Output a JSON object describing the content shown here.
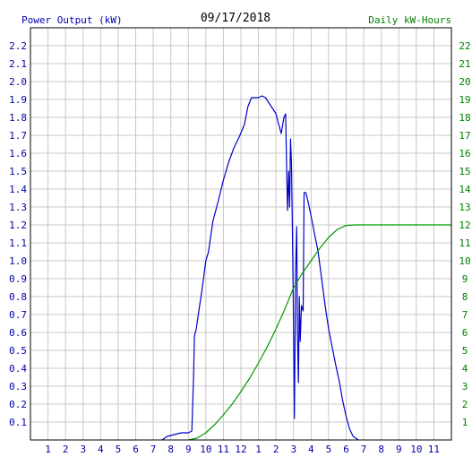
{
  "header": {
    "left_label": "Power Output (kW)",
    "date": "09/17/2018",
    "right_label": "Daily kW-Hours"
  },
  "colors": {
    "background": "#ffffff",
    "grid": "#c8c8c8",
    "frame": "#000000",
    "power_series": "#0000cc",
    "energy_series": "#009900",
    "left_axis_text": "#0000aa",
    "right_axis_text": "#008000"
  },
  "chart_data": {
    "type": "line",
    "title": "09/17/2018",
    "x_ticks": [
      "1",
      "2",
      "3",
      "4",
      "5",
      "6",
      "7",
      "8",
      "9",
      "10",
      "11",
      "12",
      "1",
      "2",
      "3",
      "4",
      "5",
      "6",
      "7",
      "8",
      "9",
      "10",
      "11"
    ],
    "x_range_hours": [
      0,
      24
    ],
    "y_left": {
      "label": "Power Output (kW)",
      "range": [
        0,
        2.3
      ],
      "ticks": [
        "0.1",
        "0.2",
        "0.3",
        "0.4",
        "0.5",
        "0.6",
        "0.7",
        "0.8",
        "0.9",
        "1.0",
        "1.1",
        "1.2",
        "1.3",
        "1.4",
        "1.5",
        "1.6",
        "1.7",
        "1.8",
        "1.9",
        "2.0",
        "2.1",
        "2.2"
      ]
    },
    "y_right": {
      "label": "Daily kW-Hours",
      "range": [
        0,
        23
      ],
      "ticks": [
        "1",
        "2",
        "3",
        "4",
        "5",
        "6",
        "7",
        "8",
        "9",
        "10",
        "11",
        "12",
        "13",
        "14",
        "15",
        "16",
        "17",
        "18",
        "19",
        "20",
        "21",
        "22"
      ]
    },
    "grid": true,
    "series": [
      {
        "axis": "left",
        "color": "#0000cc",
        "points": [
          [
            7.5,
            0.0
          ],
          [
            7.8,
            0.02
          ],
          [
            8.2,
            0.03
          ],
          [
            8.6,
            0.04
          ],
          [
            9.0,
            0.04
          ],
          [
            9.2,
            0.05
          ],
          [
            9.3,
            0.35
          ],
          [
            9.35,
            0.58
          ],
          [
            9.45,
            0.62
          ],
          [
            9.6,
            0.72
          ],
          [
            9.8,
            0.85
          ],
          [
            10.0,
            1.0
          ],
          [
            10.15,
            1.05
          ],
          [
            10.4,
            1.22
          ],
          [
            10.7,
            1.33
          ],
          [
            11.0,
            1.45
          ],
          [
            11.3,
            1.55
          ],
          [
            11.6,
            1.63
          ],
          [
            11.9,
            1.69
          ],
          [
            12.2,
            1.76
          ],
          [
            12.4,
            1.86
          ],
          [
            12.6,
            1.91
          ],
          [
            12.8,
            1.91
          ],
          [
            13.0,
            1.91
          ],
          [
            13.2,
            1.92
          ],
          [
            13.4,
            1.91
          ],
          [
            13.6,
            1.88
          ],
          [
            13.8,
            1.85
          ],
          [
            14.0,
            1.82
          ],
          [
            14.1,
            1.78
          ],
          [
            14.3,
            1.71
          ],
          [
            14.45,
            1.8
          ],
          [
            14.55,
            1.82
          ],
          [
            14.62,
            1.45
          ],
          [
            14.66,
            1.28
          ],
          [
            14.72,
            1.5
          ],
          [
            14.78,
            1.3
          ],
          [
            14.83,
            1.68
          ],
          [
            14.88,
            1.55
          ],
          [
            14.93,
            1.2
          ],
          [
            14.98,
            0.8
          ],
          [
            15.05,
            0.12
          ],
          [
            15.12,
            0.95
          ],
          [
            15.18,
            1.19
          ],
          [
            15.22,
            0.6
          ],
          [
            15.28,
            0.32
          ],
          [
            15.33,
            0.8
          ],
          [
            15.38,
            0.55
          ],
          [
            15.45,
            0.75
          ],
          [
            15.55,
            0.72
          ],
          [
            15.6,
            1.38
          ],
          [
            15.7,
            1.38
          ],
          [
            15.85,
            1.32
          ],
          [
            16.0,
            1.25
          ],
          [
            16.2,
            1.15
          ],
          [
            16.4,
            1.05
          ],
          [
            16.6,
            0.9
          ],
          [
            16.8,
            0.75
          ],
          [
            17.0,
            0.62
          ],
          [
            17.2,
            0.52
          ],
          [
            17.4,
            0.42
          ],
          [
            17.6,
            0.33
          ],
          [
            17.8,
            0.22
          ],
          [
            18.0,
            0.13
          ],
          [
            18.2,
            0.06
          ],
          [
            18.4,
            0.02
          ],
          [
            18.7,
            0.0
          ]
        ]
      },
      {
        "axis": "right",
        "color": "#009900",
        "points": [
          [
            9.0,
            0.0
          ],
          [
            9.5,
            0.1
          ],
          [
            10.0,
            0.4
          ],
          [
            10.5,
            0.85
          ],
          [
            11.0,
            1.4
          ],
          [
            11.5,
            2.0
          ],
          [
            12.0,
            2.7
          ],
          [
            12.5,
            3.45
          ],
          [
            13.0,
            4.3
          ],
          [
            13.5,
            5.2
          ],
          [
            14.0,
            6.2
          ],
          [
            14.5,
            7.3
          ],
          [
            15.0,
            8.5
          ],
          [
            15.5,
            9.3
          ],
          [
            16.0,
            10.0
          ],
          [
            16.5,
            10.7
          ],
          [
            17.0,
            11.3
          ],
          [
            17.5,
            11.75
          ],
          [
            18.0,
            11.97
          ],
          [
            18.5,
            12.0
          ],
          [
            24.0,
            12.0
          ]
        ]
      }
    ]
  }
}
